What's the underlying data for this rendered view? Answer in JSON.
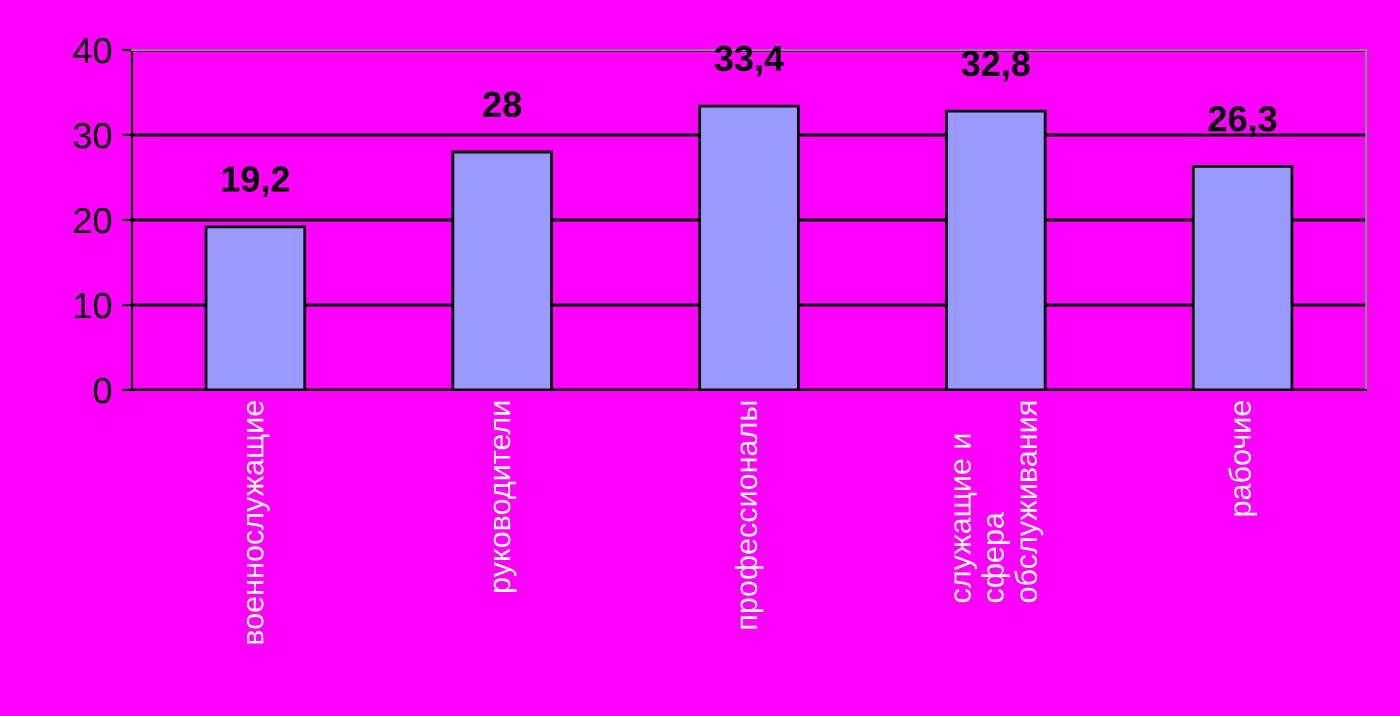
{
  "chart_data": {
    "type": "bar",
    "categories": [
      "военнослужащие",
      "руководители",
      "профессионалы",
      "служащие и\nсфера\nобслуживания",
      "рабочие"
    ],
    "values": [
      19.2,
      28,
      33.4,
      32.8,
      26.3
    ],
    "value_labels": [
      "19,2",
      "28",
      "33,4",
      "32,8",
      "26,3"
    ],
    "color": "#9999ff",
    "ylim": [
      0,
      40
    ],
    "yticks": [
      0,
      10,
      20,
      30,
      40
    ],
    "grid": "y"
  }
}
